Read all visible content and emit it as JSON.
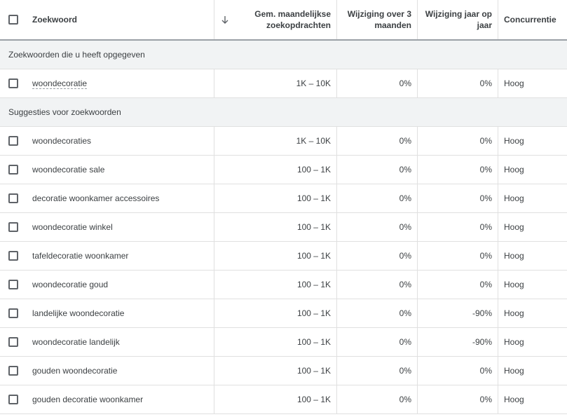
{
  "header": {
    "columns": [
      "Zoekwoord",
      "Gem. maandelijkse zoekopdrachten",
      "Wijziging over 3 maanden",
      "Wijziging jaar op jaar",
      "Concurrentie"
    ]
  },
  "sections": [
    {
      "title": "Zoekwoorden die u heeft opgegeven",
      "rows": [
        [
          "woondecoratie",
          "1K – 10K",
          "0%",
          "0%",
          "Hoog"
        ]
      ]
    },
    {
      "title": "Suggesties voor zoekwoorden",
      "rows": [
        [
          "woondecoraties",
          "1K – 10K",
          "0%",
          "0%",
          "Hoog"
        ],
        [
          "woondecoratie sale",
          "100 – 1K",
          "0%",
          "0%",
          "Hoog"
        ],
        [
          "decoratie woonkamer accessoires",
          "100 – 1K",
          "0%",
          "0%",
          "Hoog"
        ],
        [
          "woondecoratie winkel",
          "100 – 1K",
          "0%",
          "0%",
          "Hoog"
        ],
        [
          "tafeldecoratie woonkamer",
          "100 – 1K",
          "0%",
          "0%",
          "Hoog"
        ],
        [
          "woondecoratie goud",
          "100 – 1K",
          "0%",
          "0%",
          "Hoog"
        ],
        [
          "landelijke woondecoratie",
          "100 – 1K",
          "0%",
          "-90%",
          "Hoog"
        ],
        [
          "woondecoratie landelijk",
          "100 – 1K",
          "0%",
          "-90%",
          "Hoog"
        ],
        [
          "gouden woondecoratie",
          "100 – 1K",
          "0%",
          "0%",
          "Hoog"
        ],
        [
          "gouden decoratie woonkamer",
          "100 – 1K",
          "0%",
          "0%",
          "Hoog"
        ]
      ]
    }
  ]
}
